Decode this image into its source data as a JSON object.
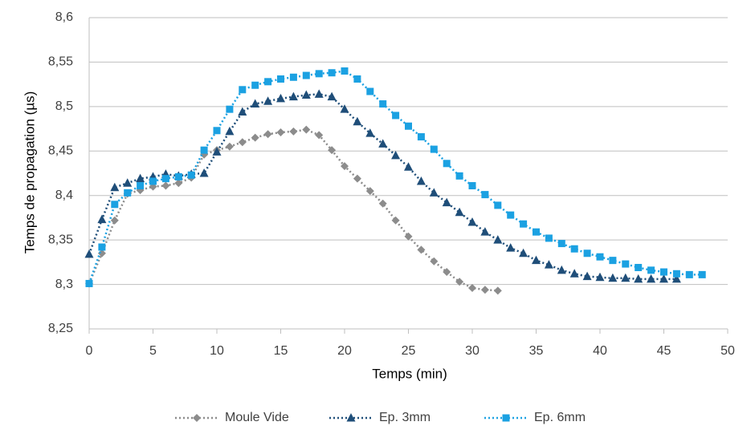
{
  "chart_data": {
    "type": "line",
    "xlabel": "Temps (min)",
    "ylabel": "Temps de propagation (µs)",
    "xlim": [
      0,
      50
    ],
    "xticks": [
      0,
      5,
      10,
      15,
      20,
      25,
      30,
      35,
      40,
      45,
      50
    ],
    "ylim": [
      8.25,
      8.6
    ],
    "yticks": [
      {
        "value": 8.25,
        "label": "8,25"
      },
      {
        "value": 8.3,
        "label": "8,3"
      },
      {
        "value": 8.35,
        "label": "8,35"
      },
      {
        "value": 8.4,
        "label": "8,4"
      },
      {
        "value": 8.45,
        "label": "8,45"
      },
      {
        "value": 8.5,
        "label": "8,5"
      },
      {
        "value": 8.55,
        "label": "8,55"
      },
      {
        "value": 8.6,
        "label": "8,6"
      }
    ],
    "grid": true,
    "legend": "bottom",
    "series": [
      {
        "name": "Moule Vide",
        "color": "#8c8c8c",
        "marker": "diamond",
        "x": [
          0,
          1,
          2,
          3,
          4,
          5,
          6,
          7,
          8,
          9,
          10,
          11,
          12,
          13,
          14,
          15,
          16,
          17,
          18,
          19,
          20,
          21,
          22,
          23,
          24,
          25,
          26,
          27,
          28,
          29,
          30,
          31,
          32
        ],
        "values": [
          8.301,
          8.335,
          8.372,
          8.402,
          8.406,
          8.41,
          8.411,
          8.414,
          8.42,
          8.446,
          8.451,
          8.455,
          8.46,
          8.465,
          8.469,
          8.471,
          8.472,
          8.474,
          8.468,
          8.451,
          8.433,
          8.419,
          8.405,
          8.391,
          8.372,
          8.354,
          8.339,
          8.326,
          8.314,
          8.303,
          8.296,
          8.294,
          8.293
        ]
      },
      {
        "name": "Ep. 3mm",
        "color": "#1f4e79",
        "marker": "triangle",
        "x": [
          0,
          1,
          2,
          3,
          4,
          5,
          6,
          7,
          8,
          9,
          10,
          11,
          12,
          13,
          14,
          15,
          16,
          17,
          18,
          19,
          20,
          21,
          22,
          23,
          24,
          25,
          26,
          27,
          28,
          29,
          30,
          31,
          32,
          33,
          34,
          35,
          36,
          37,
          38,
          39,
          40,
          41,
          42,
          43,
          44,
          45,
          46
        ],
        "values": [
          8.334,
          8.373,
          8.409,
          8.414,
          8.419,
          8.421,
          8.424,
          8.422,
          8.424,
          8.425,
          8.449,
          8.472,
          8.494,
          8.503,
          8.506,
          8.509,
          8.511,
          8.513,
          8.514,
          8.511,
          8.497,
          8.483,
          8.47,
          8.458,
          8.445,
          8.432,
          8.416,
          8.403,
          8.392,
          8.381,
          8.37,
          8.359,
          8.35,
          8.341,
          8.335,
          8.327,
          8.322,
          8.316,
          8.312,
          8.309,
          8.308,
          8.307,
          8.307,
          8.306,
          8.306,
          8.306,
          8.306
        ]
      },
      {
        "name": "Ep. 6mm",
        "color": "#1ba1e2",
        "marker": "square",
        "x": [
          0,
          1,
          2,
          3,
          4,
          5,
          6,
          7,
          8,
          9,
          10,
          11,
          12,
          13,
          14,
          15,
          16,
          17,
          18,
          19,
          20,
          21,
          22,
          23,
          24,
          25,
          26,
          27,
          28,
          29,
          30,
          31,
          32,
          33,
          34,
          35,
          36,
          37,
          38,
          39,
          40,
          41,
          42,
          43,
          44,
          45,
          46,
          47,
          48
        ],
        "values": [
          8.301,
          8.342,
          8.39,
          8.403,
          8.411,
          8.416,
          8.419,
          8.421,
          8.423,
          8.451,
          8.473,
          8.497,
          8.519,
          8.524,
          8.528,
          8.531,
          8.533,
          8.535,
          8.537,
          8.538,
          8.54,
          8.531,
          8.517,
          8.503,
          8.49,
          8.478,
          8.466,
          8.452,
          8.436,
          8.422,
          8.411,
          8.401,
          8.389,
          8.378,
          8.368,
          8.359,
          8.352,
          8.346,
          8.34,
          8.335,
          8.331,
          8.327,
          8.323,
          8.319,
          8.316,
          8.314,
          8.312,
          8.311,
          8.311
        ]
      }
    ]
  }
}
